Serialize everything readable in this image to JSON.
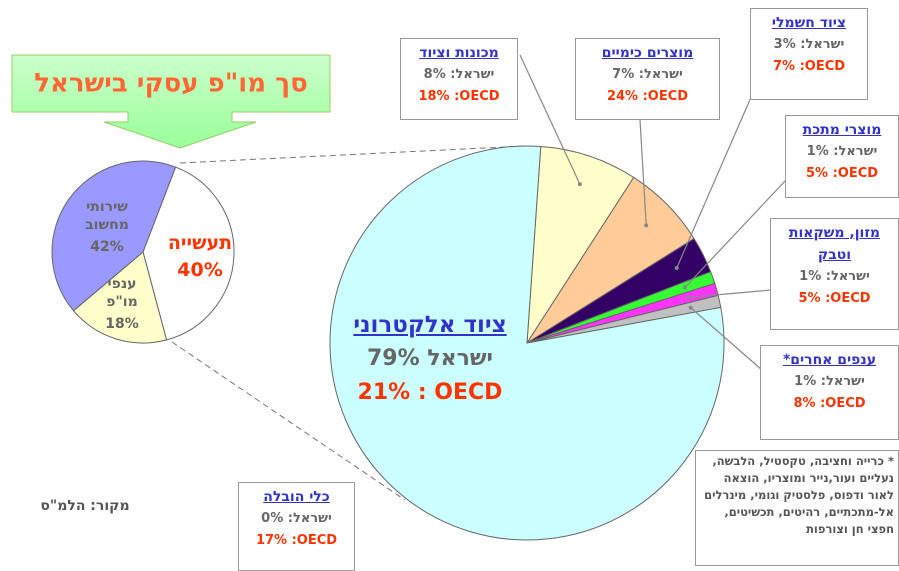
{
  "title": "סך מו\"פ עסקי בישראל",
  "source": "מקור: הלמ\"ס",
  "footnote": "* כרייה וחציבה, טקסטיל, הלבשה, נעליים ועור,נייר ומוצריו, הוצאה לאור ודפוס, פלסטיק וגומי, מינרלים אל-מתכתיים, רהיטים, תכשיטים, חפצי חן וצורפות",
  "chart_data": [
    {
      "type": "pie",
      "categories": [
        "תעשייה",
        "ענפי מו\"פ",
        "שירותי מחשוב"
      ],
      "values": [
        40,
        18,
        42
      ],
      "value_labels": [
        "40%",
        "18%",
        "42%"
      ],
      "colors": [
        "#ffffff",
        "#ffffcc",
        "#9999ff"
      ]
    },
    {
      "type": "pie",
      "categories": [
        "מכונות וציוד",
        "מוצרים כימיים",
        "ציוד חשמלי",
        "מוצרי מתכת",
        "מזון, משקאות וטבק",
        "ענפים אחרים*",
        "כלי הובלה",
        "ציוד אלקטרוני"
      ],
      "values": [
        8,
        7,
        3,
        1,
        1,
        1,
        0,
        79
      ],
      "value_labels": [
        "ישראל: 8%",
        "ישראל: 7%",
        "ישראל: 3%",
        "ישראל: 1%",
        "ישראל: 1%",
        "ישראל: 1%",
        "ישראל: 0%",
        "ישראל 79%"
      ],
      "oecd_labels": [
        "18% :OECD",
        "24% :OECD",
        "7% :OECD",
        "5% :OECD",
        "5% :OECD",
        "8% :OECD",
        "17% :OECD",
        "21% : OECD"
      ],
      "colors": [
        "#ffffcc",
        "#ffcc99",
        "#330066",
        "#33ff33",
        "#ff33ff",
        "#c0c0c0",
        "#ffffff",
        "#ccffff"
      ]
    }
  ]
}
